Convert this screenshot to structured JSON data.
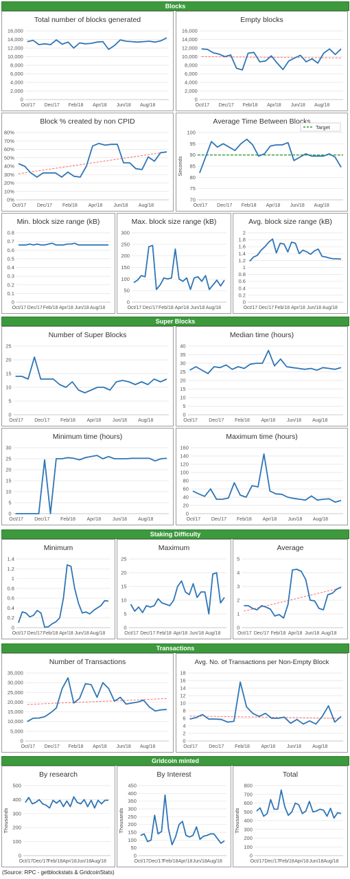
{
  "sections": [
    "Blocks",
    "Super Blocks",
    "Staking Difficulty",
    "Transactions",
    "Gridcoin minted"
  ],
  "source": "(Source: RPC - getblockstats & GridcoinStats)",
  "colors": {
    "series": "#2e75b6",
    "trend": "#ff6666",
    "target": "#339933",
    "header": "#3c9a3c"
  },
  "chart_data": [
    {
      "id": "total-blocks",
      "type": "line",
      "title": "Total number of blocks generated",
      "ylabel": "",
      "ylim": [
        0,
        16000
      ],
      "yticks": [
        0,
        2000,
        4000,
        6000,
        8000,
        10000,
        12000,
        14000,
        16000
      ],
      "xticks": [
        "Oct/17",
        "Dec/17",
        "Feb/18",
        "Apr/18",
        "Jun/18",
        "Aug/18"
      ],
      "series": [
        {
          "values": [
            13500,
            13800,
            12800,
            13000,
            12800,
            13900,
            12900,
            13400,
            12000,
            13200,
            13000,
            13100,
            13400,
            13500,
            11700,
            12600,
            13900,
            13600,
            13500,
            13400,
            13500,
            13600,
            13400,
            13700,
            14400
          ]
        }
      ]
    },
    {
      "id": "empty-blocks",
      "type": "line",
      "title": "Empty blocks",
      "ylabel": "",
      "ylim": [
        0,
        16000
      ],
      "yticks": [
        0,
        2000,
        4000,
        6000,
        8000,
        10000,
        12000,
        14000,
        16000
      ],
      "xticks": [
        "Oct/17",
        "Dec/17",
        "Feb/18",
        "Apr/18",
        "Jun/18",
        "Aug/18"
      ],
      "trend": [
        10000,
        9700
      ],
      "series": [
        {
          "values": [
            11800,
            11700,
            10900,
            10600,
            10000,
            10400,
            7300,
            6900,
            10800,
            11000,
            8800,
            9000,
            10200,
            8500,
            7000,
            9000,
            9700,
            10300,
            8800,
            9500,
            8500,
            10800,
            11800,
            10500,
            11800
          ]
        }
      ]
    },
    {
      "id": "non-cpid",
      "type": "line",
      "title": "Block % created by non CPID",
      "ylabel": "",
      "ylim": [
        0,
        80
      ],
      "yticks": [
        0,
        10,
        20,
        30,
        40,
        50,
        60,
        70,
        80
      ],
      "ysuffix": "%",
      "xticks": [
        "Oct/17",
        "Dec/17",
        "Feb/18",
        "Apr/18",
        "Jun/18",
        "Aug/18"
      ],
      "trend": [
        31,
        57
      ],
      "series": [
        {
          "values": [
            43,
            40,
            32,
            27,
            32,
            32,
            32,
            27,
            33,
            28,
            27,
            40,
            64,
            67,
            65,
            66,
            66,
            44,
            44,
            37,
            36,
            51,
            46,
            56,
            57
          ]
        }
      ]
    },
    {
      "id": "avg-time",
      "type": "line",
      "title": "Average Time Between Blocks",
      "ylabel": "Seconds",
      "ylim": [
        70,
        100
      ],
      "yticks": [
        70,
        75,
        80,
        85,
        90,
        95,
        100
      ],
      "xticks": [
        "Oct/17",
        "Dec/17",
        "Feb/18",
        "Apr/18",
        "Jun/18",
        "Aug/18"
      ],
      "target": 90,
      "legend": "Target",
      "series": [
        {
          "values": [
            82,
            89,
            96,
            93.5,
            95,
            93.5,
            92,
            95,
            97,
            94.5,
            89.5,
            90.5,
            94,
            94.5,
            94.5,
            95.5,
            87.5,
            89,
            90.5,
            89.5,
            89.5,
            89.5,
            90.5,
            89,
            84.5
          ]
        }
      ]
    },
    {
      "id": "min-block-size",
      "type": "line",
      "title": "Min. block size range (kB)",
      "ylabel": "",
      "ylim": [
        0,
        0.8
      ],
      "yticks": [
        0,
        0.1,
        0.2,
        0.3,
        0.4,
        0.5,
        0.6,
        0.7,
        0.8
      ],
      "xticks": [
        "Oct/17",
        "Dec/17",
        "Feb/18",
        "Apr/18",
        "Jun/18",
        "Aug/18"
      ],
      "series": [
        {
          "values": [
            0.66,
            0.66,
            0.66,
            0.67,
            0.66,
            0.67,
            0.66,
            0.66,
            0.67,
            0.68,
            0.66,
            0.66,
            0.66,
            0.67,
            0.67,
            0.68,
            0.66,
            0.66,
            0.66,
            0.66,
            0.66,
            0.66,
            0.66,
            0.66,
            0.66
          ]
        }
      ]
    },
    {
      "id": "max-block-size",
      "type": "line",
      "title": "Max. block size range (kB)",
      "ylabel": "",
      "ylim": [
        0,
        300
      ],
      "yticks": [
        0,
        50,
        100,
        150,
        200,
        250,
        300
      ],
      "xticks": [
        "Oct/17",
        "Dec/17",
        "Feb/18",
        "Apr/18",
        "Jun/18",
        "Aug/18"
      ],
      "series": [
        {
          "values": [
            85,
            95,
            115,
            110,
            240,
            245,
            55,
            75,
            105,
            100,
            105,
            230,
            100,
            90,
            105,
            55,
            105,
            110,
            90,
            115,
            55,
            75,
            95,
            70,
            95
          ]
        }
      ]
    },
    {
      "id": "avg-block-size",
      "type": "line",
      "title": "Avg. block size range (kB)",
      "ylabel": "",
      "ylim": [
        0,
        2
      ],
      "yticks": [
        0,
        0.2,
        0.4,
        0.6,
        0.8,
        1,
        1.2,
        1.4,
        1.6,
        1.8,
        2
      ],
      "xticks": [
        "Oct/17",
        "Dec/17",
        "Feb/18",
        "Apr/18",
        "Jun/18",
        "Aug/18"
      ],
      "series": [
        {
          "values": [
            1.18,
            1.3,
            1.35,
            1.5,
            1.6,
            1.73,
            1.82,
            1.42,
            1.7,
            1.68,
            1.45,
            1.73,
            1.7,
            1.4,
            1.5,
            1.45,
            1.38,
            1.48,
            1.53,
            1.32,
            1.3,
            1.27,
            1.25,
            1.25,
            1.24
          ]
        }
      ]
    },
    {
      "id": "super-blocks",
      "type": "line",
      "title": "Number of Super Blocks",
      "ylabel": "",
      "ylim": [
        0,
        25
      ],
      "yticks": [
        0,
        5,
        10,
        15,
        20,
        25
      ],
      "xticks": [
        "Oct/17",
        "Dec/17",
        "Feb/18",
        "Apr/18",
        "Jun/18",
        "Aug/18"
      ],
      "series": [
        {
          "values": [
            14,
            14,
            13,
            21,
            13,
            13,
            13,
            11,
            10,
            12,
            9,
            8,
            9,
            10,
            10,
            9,
            12,
            12.5,
            12,
            11,
            12,
            11,
            13,
            12,
            13
          ]
        }
      ]
    },
    {
      "id": "median-time",
      "type": "line",
      "title": "Median time (hours)",
      "ylabel": "",
      "ylim": [
        0,
        40
      ],
      "yticks": [
        0,
        5,
        10,
        15,
        20,
        25,
        30,
        35,
        40
      ],
      "xticks": [
        "Oct/17",
        "Dec/17",
        "Feb/18",
        "Apr/18",
        "Jun/18",
        "Aug/18"
      ],
      "series": [
        {
          "values": [
            26,
            28,
            26,
            24,
            28,
            27.5,
            29,
            26.5,
            28,
            27,
            29.5,
            30,
            30,
            37.5,
            28.5,
            32.5,
            28,
            27.5,
            27,
            26.5,
            27,
            26,
            27.5,
            27,
            26.5,
            27.5
          ]
        }
      ]
    },
    {
      "id": "minimum-time",
      "type": "line",
      "title": "Minimum time (hours)",
      "ylabel": "",
      "ylim": [
        0,
        30
      ],
      "yticks": [
        0,
        5,
        10,
        15,
        20,
        25,
        30
      ],
      "xticks": [
        "Oct/17",
        "Dec/17",
        "Feb/18",
        "Apr/18",
        "Jun/18",
        "Aug/18"
      ],
      "series": [
        {
          "values": [
            0,
            0,
            0,
            0,
            0,
            24.5,
            0,
            25,
            25,
            25.5,
            25.2,
            24.5,
            25.5,
            26,
            26.5,
            25,
            26,
            25,
            25,
            25,
            25.2,
            25.2,
            25.2,
            25.2,
            24,
            25,
            25.2
          ]
        }
      ]
    },
    {
      "id": "maximum-time",
      "type": "line",
      "title": "Maximum time (hours)",
      "ylabel": "",
      "ylim": [
        0,
        160
      ],
      "yticks": [
        0,
        20,
        40,
        60,
        80,
        100,
        120,
        140,
        160
      ],
      "xticks": [
        "Oct/17",
        "Dec/17",
        "Feb/18",
        "Apr/18",
        "Jun/18",
        "Aug/18"
      ],
      "series": [
        {
          "values": [
            55,
            48,
            42,
            60,
            35,
            35,
            38,
            75,
            45,
            40,
            68,
            65,
            145,
            55,
            48,
            47,
            40,
            37,
            35,
            33,
            43,
            33,
            35,
            36,
            28,
            32
          ]
        }
      ]
    },
    {
      "id": "stake-minimum",
      "type": "line",
      "title": "Minimum",
      "ylabel": "",
      "ylim": [
        0,
        1.4
      ],
      "yticks": [
        0,
        0.2,
        0.4,
        0.6,
        0.8,
        1,
        1.2,
        1.4
      ],
      "xticks": [
        "Oct/17",
        "Dec/17",
        "Feb/18",
        "Apr/18",
        "Jun/18",
        "Aug/18"
      ],
      "series": [
        {
          "values": [
            0.1,
            0.32,
            0.3,
            0.22,
            0.25,
            0.35,
            0.3,
            0.01,
            0.02,
            0.08,
            0.12,
            0.2,
            0.6,
            1.28,
            1.25,
            0.8,
            0.5,
            0.3,
            0.32,
            0.28,
            0.35,
            0.4,
            0.45,
            0.55,
            0.54
          ]
        }
      ]
    },
    {
      "id": "stake-maximum",
      "type": "line",
      "title": "Maximum",
      "ylabel": "",
      "ylim": [
        0,
        25
      ],
      "yticks": [
        0,
        5,
        10,
        15,
        20,
        25
      ],
      "xticks": [
        "Oct/17",
        "Dec/17",
        "Feb/18",
        "Apr/18",
        "Jun/18",
        "Aug/18"
      ],
      "series": [
        {
          "values": [
            8.5,
            6,
            7.5,
            5.5,
            8,
            7.5,
            8,
            10.5,
            9,
            8.5,
            8,
            10,
            15,
            17,
            13,
            12,
            16,
            11,
            13,
            13,
            5,
            19.5,
            20,
            9,
            11
          ]
        }
      ]
    },
    {
      "id": "stake-average",
      "type": "line",
      "title": "Average",
      "ylabel": "",
      "ylim": [
        0,
        5
      ],
      "yticks": [
        0,
        1,
        2,
        3,
        4,
        5
      ],
      "xticks": [
        "Oct/17",
        "Dec/17",
        "Feb/18",
        "Apr/18",
        "Jun/18",
        "Aug/18"
      ],
      "trend": [
        1.2,
        2.9
      ],
      "series": [
        {
          "values": [
            1.6,
            1.6,
            1.4,
            1.3,
            1.6,
            1.5,
            1.35,
            0.85,
            0.95,
            0.7,
            1.7,
            4.2,
            4.25,
            4.1,
            3.5,
            2.0,
            1.95,
            1.4,
            1.3,
            2.4,
            2.5,
            2.8,
            2.95
          ]
        }
      ]
    },
    {
      "id": "transactions",
      "type": "line",
      "title": "Number of Transactions",
      "ylabel": "",
      "ylim": [
        0,
        35000
      ],
      "yticks": [
        0,
        5000,
        10000,
        15000,
        20000,
        25000,
        30000,
        35000
      ],
      "xticks": [
        "Oct/17",
        "Dec/17",
        "Feb/18",
        "Apr/18",
        "Jun/18",
        "Aug/18"
      ],
      "trend": [
        18800,
        21800
      ],
      "series": [
        {
          "values": [
            10000,
            11700,
            11800,
            12500,
            14500,
            17000,
            27000,
            32500,
            19500,
            22000,
            29500,
            29000,
            22500,
            30000,
            27000,
            20500,
            22500,
            19000,
            19500,
            20000,
            21000,
            17500,
            15500,
            16000,
            16200
          ]
        }
      ]
    },
    {
      "id": "tx-per-block",
      "type": "line",
      "title": "Avg. No. of Transactions per Non-Empty Block",
      "ylabel": "",
      "ylim": [
        0,
        18
      ],
      "yticks": [
        0,
        2,
        4,
        6,
        8,
        10,
        12,
        14,
        16,
        18
      ],
      "xticks": [
        "Oct/17",
        "Dec/17",
        "Feb/18",
        "Apr/18",
        "Jun/18",
        "Aug/18"
      ],
      "trend": [
        6.6,
        6.0
      ],
      "series": [
        {
          "values": [
            5.8,
            6.2,
            7.0,
            5.8,
            5.8,
            5.7,
            5.0,
            5.2,
            15.6,
            9.0,
            7.3,
            6.5,
            7.3,
            6.0,
            6.0,
            6.3,
            4.7,
            5.7,
            4.5,
            5.3,
            4.5,
            6.5,
            9.3,
            5.0,
            6.5
          ]
        }
      ]
    },
    {
      "id": "by-research",
      "type": "line",
      "title": "By research",
      "ylabel": "Thousands",
      "ylim": [
        0,
        500
      ],
      "yticks": [
        0,
        100,
        200,
        300,
        400,
        500
      ],
      "xticks": [
        "Oct/17",
        "Dec/17",
        "Feb/18",
        "Apr/18",
        "Jun/18",
        "Aug/18"
      ],
      "series": [
        {
          "values": [
            380,
            415,
            370,
            380,
            400,
            370,
            360,
            340,
            395,
            375,
            395,
            350,
            390,
            350,
            420,
            380,
            370,
            400,
            350,
            395,
            340,
            395,
            370,
            395,
            395
          ]
        }
      ]
    },
    {
      "id": "by-interest",
      "type": "line",
      "title": "By Interest",
      "ylabel": "Thousands",
      "ylim": [
        0,
        450
      ],
      "yticks": [
        0,
        50,
        100,
        150,
        200,
        250,
        300,
        350,
        400,
        450
      ],
      "xticks": [
        "Oct/17",
        "Dec/17",
        "Feb/18",
        "Apr/18",
        "Jun/18",
        "Aug/18"
      ],
      "series": [
        {
          "values": [
            130,
            140,
            90,
            100,
            260,
            140,
            155,
            390,
            170,
            70,
            120,
            200,
            220,
            130,
            120,
            130,
            185,
            105,
            125,
            130,
            140,
            140,
            110,
            80,
            95
          ]
        }
      ]
    },
    {
      "id": "total-minted",
      "type": "line",
      "title": "Total",
      "ylabel": "Thousands",
      "ylim": [
        0,
        800
      ],
      "yticks": [
        0,
        100,
        200,
        300,
        400,
        500,
        600,
        700,
        800
      ],
      "xticks": [
        "Oct/17",
        "Dec/17",
        "Feb/18",
        "Apr/18",
        "Jun/18",
        "Aug/18"
      ],
      "series": [
        {
          "values": [
            510,
            545,
            450,
            480,
            640,
            530,
            530,
            750,
            560,
            460,
            500,
            600,
            580,
            480,
            510,
            620,
            500,
            510,
            530,
            520,
            450,
            540,
            430,
            490,
            480
          ]
        }
      ]
    }
  ]
}
